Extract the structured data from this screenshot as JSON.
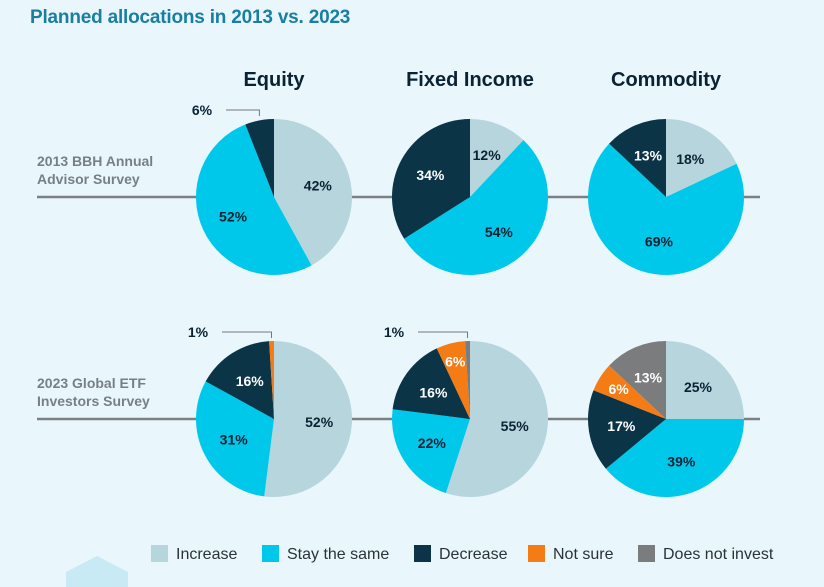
{
  "page": {
    "title": "Planned allocations in 2013 vs. 2023"
  },
  "colors": {
    "Increase": "#b6d5dd",
    "Stay the same": "#00c8eb",
    "Decrease": "#0b3447",
    "Not sure": "#f57b14",
    "Does not invest": "#7a7c7d",
    "line": "#7c8083",
    "background": "#e9f7fd"
  },
  "chart_data": {
    "type": "pie",
    "title": "Planned allocations in 2013 vs. 2023",
    "columns": [
      "Equity",
      "Fixed Income",
      "Commodity"
    ],
    "rows": [
      {
        "label_lines": [
          "2013 BBH Annual",
          "Advisor Survey"
        ],
        "pies": [
          {
            "column": "Equity",
            "slices": [
              {
                "category": "Increase",
                "value": 42,
                "label": "42%"
              },
              {
                "category": "Stay the same",
                "value": 52,
                "label": "52%"
              },
              {
                "category": "Decrease",
                "value": 6,
                "label": "6%"
              }
            ]
          },
          {
            "column": "Fixed Income",
            "slices": [
              {
                "category": "Increase",
                "value": 12,
                "label": "12%"
              },
              {
                "category": "Stay the same",
                "value": 54,
                "label": "54%"
              },
              {
                "category": "Decrease",
                "value": 34,
                "label": "34%"
              }
            ]
          },
          {
            "column": "Commodity",
            "slices": [
              {
                "category": "Increase",
                "value": 18,
                "label": "18%"
              },
              {
                "category": "Stay the same",
                "value": 69,
                "label": "69%"
              },
              {
                "category": "Decrease",
                "value": 13,
                "label": "13%"
              }
            ]
          }
        ]
      },
      {
        "label_lines": [
          "2023 Global ETF",
          "Investors Survey"
        ],
        "pies": [
          {
            "column": "Equity",
            "slices": [
              {
                "category": "Increase",
                "value": 52,
                "label": "52%"
              },
              {
                "category": "Stay the same",
                "value": 31,
                "label": "31%"
              },
              {
                "category": "Decrease",
                "value": 16,
                "label": "16%"
              },
              {
                "category": "Not sure",
                "value": 1,
                "label": "1%"
              }
            ]
          },
          {
            "column": "Fixed Income",
            "slices": [
              {
                "category": "Increase",
                "value": 55,
                "label": "55%"
              },
              {
                "category": "Stay the same",
                "value": 22,
                "label": "22%"
              },
              {
                "category": "Decrease",
                "value": 16,
                "label": "16%"
              },
              {
                "category": "Not sure",
                "value": 6,
                "label": "6%"
              },
              {
                "category": "Does not invest",
                "value": 1,
                "label": "1%"
              }
            ]
          },
          {
            "column": "Commodity",
            "slices": [
              {
                "category": "Increase",
                "value": 25,
                "label": "25%"
              },
              {
                "category": "Stay the same",
                "value": 39,
                "label": "39%"
              },
              {
                "category": "Decrease",
                "value": 17,
                "label": "17%"
              },
              {
                "category": "Not sure",
                "value": 6,
                "label": "6%"
              },
              {
                "category": "Does not invest",
                "value": 13,
                "label": "13%"
              }
            ]
          }
        ]
      }
    ],
    "legend": [
      "Increase",
      "Stay the same",
      "Decrease",
      "Not sure",
      "Does not invest"
    ],
    "legend_position": "bottom"
  }
}
